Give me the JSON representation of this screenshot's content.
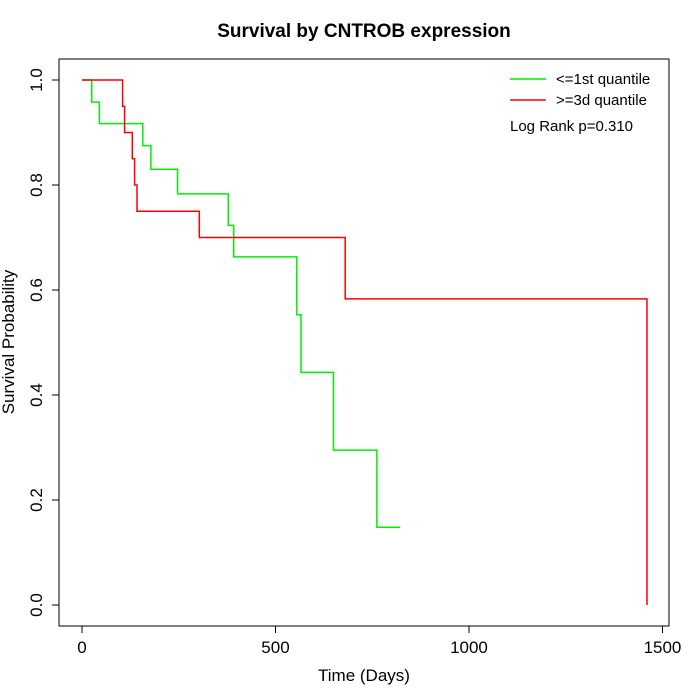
{
  "chart_data": {
    "type": "line",
    "subtype": "kaplan-meier step",
    "title": "Survival by CNTROB expression",
    "xlabel": "Time (Days)",
    "ylabel": "Survival Probability",
    "xlim": [
      0,
      1500
    ],
    "ylim": [
      0,
      1
    ],
    "x_ticks": [
      0,
      500,
      1000,
      1500
    ],
    "x_tick_labels": [
      "0",
      "500",
      "1000",
      "1500"
    ],
    "y_ticks": [
      0,
      0.2,
      0.4,
      0.6,
      0.8,
      1.0
    ],
    "y_tick_labels": [
      "0.0",
      "0.2",
      "0.4",
      "0.6",
      "0.8",
      "1.0"
    ],
    "grid": false,
    "legend_position": "top-right",
    "annotation": "Log Rank p=0.310",
    "series": [
      {
        "name": "<=1st quantile",
        "color": "#00ee00",
        "points": [
          [
            0,
            1.0
          ],
          [
            25,
            1.0
          ],
          [
            25,
            0.958
          ],
          [
            45,
            0.958
          ],
          [
            45,
            0.917
          ],
          [
            157,
            0.917
          ],
          [
            157,
            0.875
          ],
          [
            178,
            0.875
          ],
          [
            178,
            0.83
          ],
          [
            247,
            0.83
          ],
          [
            247,
            0.783
          ],
          [
            378,
            0.783
          ],
          [
            378,
            0.723
          ],
          [
            392,
            0.723
          ],
          [
            392,
            0.663
          ],
          [
            555,
            0.663
          ],
          [
            555,
            0.553
          ],
          [
            566,
            0.553
          ],
          [
            566,
            0.443
          ],
          [
            650,
            0.443
          ],
          [
            650,
            0.295
          ],
          [
            762,
            0.295
          ],
          [
            762,
            0.148
          ],
          [
            822,
            0.148
          ]
        ]
      },
      {
        "name": ">=3d quantile",
        "color": "#ff0000",
        "points": [
          [
            0,
            1.0
          ],
          [
            105,
            1.0
          ],
          [
            105,
            0.95
          ],
          [
            110,
            0.95
          ],
          [
            110,
            0.9
          ],
          [
            130,
            0.9
          ],
          [
            130,
            0.85
          ],
          [
            136,
            0.85
          ],
          [
            136,
            0.8
          ],
          [
            142,
            0.8
          ],
          [
            142,
            0.75
          ],
          [
            303,
            0.75
          ],
          [
            303,
            0.7
          ],
          [
            680,
            0.7
          ],
          [
            680,
            0.583
          ],
          [
            1460,
            0.583
          ],
          [
            1460,
            0.0
          ]
        ]
      }
    ]
  }
}
